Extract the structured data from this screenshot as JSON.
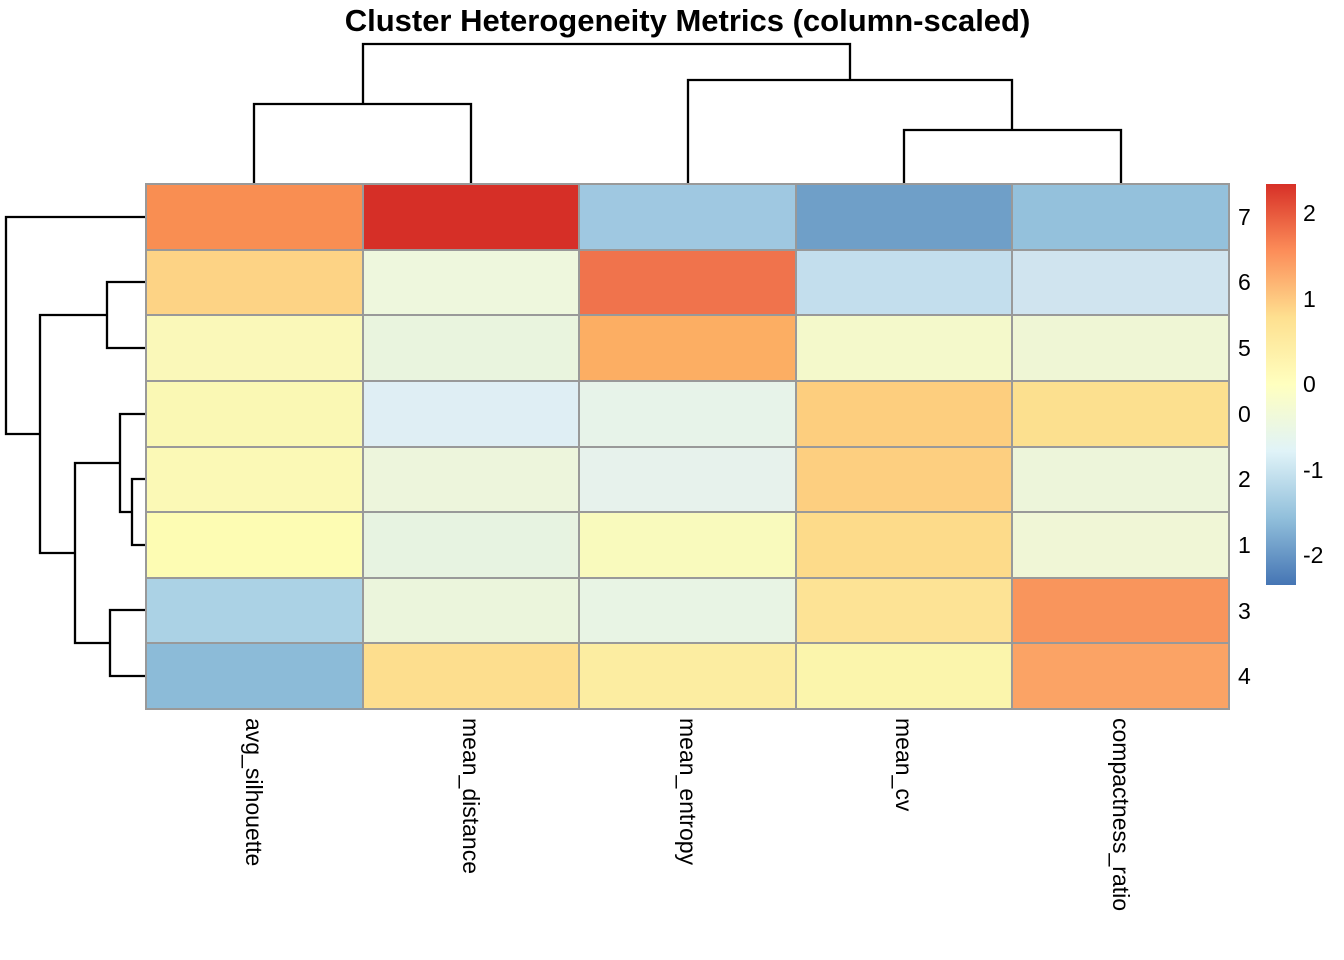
{
  "title": "Cluster Heterogeneity Metrics (column-scaled)",
  "chart_data": {
    "type": "heatmap",
    "title": "Cluster Heterogeneity Metrics (column-scaled)",
    "scaling_note": "column-scaled z-scores",
    "columns": [
      "avg_silhouette",
      "mean_distance",
      "mean_entropy",
      "mean_cv",
      "compactness_ratio"
    ],
    "rows": [
      "7",
      "6",
      "5",
      "0",
      "2",
      "1",
      "3",
      "4"
    ],
    "values": [
      [
        1.55,
        2.3,
        -1.35,
        -1.95,
        -1.55
      ],
      [
        1.0,
        -0.35,
        1.9,
        -1.0,
        -0.9
      ],
      [
        0.1,
        -0.4,
        1.25,
        -0.15,
        -0.3
      ],
      [
        0.15,
        -0.8,
        -0.5,
        1.05,
        0.8
      ],
      [
        0.1,
        -0.35,
        -0.55,
        1.05,
        -0.35
      ],
      [
        0.15,
        -0.45,
        0.0,
        0.9,
        -0.3
      ],
      [
        -1.2,
        -0.35,
        -0.45,
        0.75,
        1.5
      ],
      [
        -1.65,
        0.85,
        0.55,
        0.25,
        1.35
      ]
    ],
    "cell_colors": [
      [
        "#f98e52",
        "#d62f27",
        "#9fc8e1",
        "#6f9fc8",
        "#94c1dc"
      ],
      [
        "#fdd385",
        "#eef7dd",
        "#f0734c",
        "#c3deed",
        "#d0e4ef"
      ],
      [
        "#faf8b9",
        "#e9f4de",
        "#fcae63",
        "#f4f9cb",
        "#eff6d5"
      ],
      [
        "#faf8b4",
        "#dfeef4",
        "#e7f3e9",
        "#fdce7e",
        "#fce08f"
      ],
      [
        "#fbf9b6",
        "#edf5dc",
        "#e7f2ec",
        "#fdcf80",
        "#edf5da"
      ],
      [
        "#fdfcb3",
        "#e7f3e1",
        "#f9fabd",
        "#fddb8a",
        "#f0f6d6"
      ],
      [
        "#abd2e5",
        "#ebf5dc",
        "#e8f4e4",
        "#fde395",
        "#f9955c"
      ],
      [
        "#8cbbd8",
        "#fdde8e",
        "#fceda1",
        "#fbf5ac",
        "#fba365"
      ]
    ],
    "colorbar": {
      "domain": [
        -2.35,
        2.35
      ],
      "ticks": [
        2,
        1,
        0,
        -1,
        -2
      ],
      "colors_top_to_bottom": [
        "#d73027",
        "#fc8d59",
        "#fee090",
        "#ffffbf",
        "#e0f3f8",
        "#91bfdb",
        "#4575b4"
      ]
    },
    "col_linkage": [
      [
        "avg_silhouette",
        "mean_distance"
      ],
      [
        "mean_entropy",
        [
          "mean_cv",
          "compactness_ratio"
        ]
      ]
    ],
    "row_linkage": [
      "7",
      [
        [
          "6",
          "5"
        ],
        [
          [
            "0",
            [
              "2",
              "1"
            ]
          ],
          [
            "3",
            "4"
          ]
        ]
      ]
    ],
    "grid_line_color": "#999999",
    "legend_position": "right"
  },
  "legend": {
    "ticks": [
      {
        "label": "2",
        "value": 2
      },
      {
        "label": "1",
        "value": 1
      },
      {
        "label": "0",
        "value": 0
      },
      {
        "label": "-1",
        "value": -1
      },
      {
        "label": "-2",
        "value": -2
      }
    ]
  }
}
